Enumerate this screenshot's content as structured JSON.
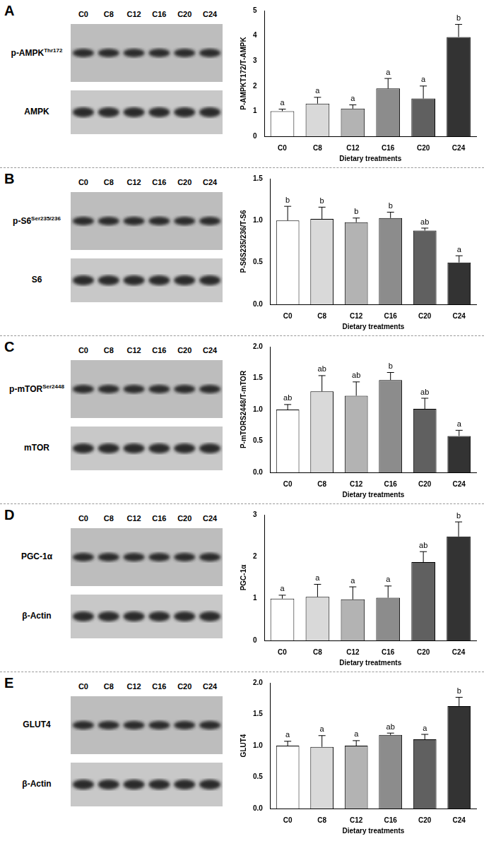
{
  "chart_data": [
    {
      "type": "bar",
      "title": "A",
      "categories": [
        "C0",
        "C8",
        "C12",
        "C16",
        "C20",
        "C24"
      ],
      "values": [
        1.0,
        1.3,
        1.1,
        1.9,
        1.5,
        3.95
      ],
      "errors": [
        0.08,
        0.25,
        0.15,
        0.4,
        0.5,
        0.5
      ],
      "significance": [
        "a",
        "a",
        "a",
        "a",
        "a",
        "b"
      ],
      "colors": [
        "#ffffff",
        "#d9d9d9",
        "#b3b3b3",
        "#8c8c8c",
        "#606060",
        "#333333"
      ],
      "x_label": "Dietary treatments",
      "y_label": "P-AMPKT172/T-AMPK",
      "ylim": [
        0,
        5
      ],
      "yticks": [
        0,
        1,
        2,
        3,
        4,
        5
      ],
      "grid": false
    },
    {
      "type": "bar",
      "title": "B",
      "categories": [
        "C0",
        "C8",
        "C12",
        "C16",
        "C20",
        "C24"
      ],
      "values": [
        1.0,
        1.02,
        0.98,
        1.03,
        0.88,
        0.5
      ],
      "errors": [
        0.17,
        0.14,
        0.05,
        0.07,
        0.03,
        0.08
      ],
      "significance": [
        "b",
        "b",
        "b",
        "b",
        "ab",
        "a"
      ],
      "colors": [
        "#ffffff",
        "#d9d9d9",
        "#b3b3b3",
        "#8c8c8c",
        "#606060",
        "#333333"
      ],
      "x_label": "Dietary treatments",
      "y_label": "P-S6S235/236/T-S6",
      "ylim": [
        0,
        1.5
      ],
      "yticks": [
        {
          "value": 0,
          "label": "0.0"
        },
        {
          "value": 0.5,
          "label": "0.5"
        },
        {
          "value": 1,
          "label": "1.0"
        },
        {
          "value": 1.5,
          "label": "1.5"
        }
      ],
      "grid": false
    },
    {
      "type": "bar",
      "title": "C",
      "categories": [
        "C0",
        "C8",
        "C12",
        "C16",
        "C20",
        "C24"
      ],
      "values": [
        1.0,
        1.29,
        1.22,
        1.47,
        1.01,
        0.58
      ],
      "errors": [
        0.08,
        0.25,
        0.22,
        0.12,
        0.17,
        0.09
      ],
      "significance": [
        "ab",
        "ab",
        "ab",
        "b",
        "ab",
        "a"
      ],
      "colors": [
        "#ffffff",
        "#d9d9d9",
        "#b3b3b3",
        "#8c8c8c",
        "#606060",
        "#333333"
      ],
      "x_label": "Dietary treatments",
      "y_label": "P-mTORS2448/T-mTOR",
      "ylim": [
        0,
        2
      ],
      "yticks": [
        {
          "value": 0,
          "label": "0.0"
        },
        {
          "value": 0.5,
          "label": "0.5"
        },
        {
          "value": 1,
          "label": "1.0"
        },
        {
          "value": 1.5,
          "label": "1.5"
        },
        {
          "value": 2,
          "label": "2.0"
        }
      ],
      "grid": false
    },
    {
      "type": "bar",
      "title": "D",
      "categories": [
        "C0",
        "C8",
        "C12",
        "C16",
        "C20",
        "C24"
      ],
      "values": [
        1.0,
        1.04,
        0.98,
        1.02,
        1.87,
        2.48
      ],
      "errors": [
        0.08,
        0.3,
        0.3,
        0.28,
        0.25,
        0.35
      ],
      "significance": [
        "a",
        "a",
        "a",
        "a",
        "ab",
        "b"
      ],
      "colors": [
        "#ffffff",
        "#d9d9d9",
        "#b3b3b3",
        "#8c8c8c",
        "#606060",
        "#333333"
      ],
      "x_label": "Dietary treatments",
      "y_label": "PGC-1α",
      "ylim": [
        0,
        3
      ],
      "yticks": [
        0,
        1,
        2,
        3
      ],
      "grid": false
    },
    {
      "type": "bar",
      "title": "E",
      "categories": [
        "C0",
        "C8",
        "C12",
        "C16",
        "C20",
        "C24"
      ],
      "values": [
        1.0,
        0.98,
        1.0,
        1.17,
        1.1,
        1.63
      ],
      "errors": [
        0.07,
        0.18,
        0.08,
        0.03,
        0.08,
        0.14
      ],
      "significance": [
        "a",
        "a",
        "a",
        "ab",
        "a",
        "b"
      ],
      "colors": [
        "#ffffff",
        "#d9d9d9",
        "#b3b3b3",
        "#8c8c8c",
        "#606060",
        "#333333"
      ],
      "x_label": "Dietary treatments",
      "y_label": "GLUT4",
      "ylim": [
        0,
        2
      ],
      "yticks": [
        {
          "value": 0,
          "label": "0.0"
        },
        {
          "value": 0.5,
          "label": "0.5"
        },
        {
          "value": 1,
          "label": "1.0"
        },
        {
          "value": 1.5,
          "label": "1.5"
        },
        {
          "value": 2,
          "label": "2.0"
        }
      ],
      "grid": false
    }
  ],
  "blots": [
    {
      "lanes": [
        "C0",
        "C8",
        "C12",
        "C16",
        "C20",
        "C24"
      ],
      "rows": [
        {
          "name": "p-AMPK",
          "sup": "Thr172"
        },
        {
          "name": "AMPK",
          "sup": ""
        }
      ]
    },
    {
      "lanes": [
        "C0",
        "C8",
        "C12",
        "C16",
        "C20",
        "C24"
      ],
      "rows": [
        {
          "name": "p-S6",
          "sup": "Ser235/236"
        },
        {
          "name": "S6",
          "sup": ""
        }
      ]
    },
    {
      "lanes": [
        "C0",
        "C8",
        "C12",
        "C16",
        "C20",
        "C24"
      ],
      "rows": [
        {
          "name": "p-mTOR",
          "sup": "Ser2448"
        },
        {
          "name": "mTOR",
          "sup": ""
        }
      ]
    },
    {
      "lanes": [
        "C0",
        "C8",
        "C12",
        "C16",
        "C20",
        "C24"
      ],
      "rows": [
        {
          "name": "PGC-1α",
          "sup": ""
        },
        {
          "name": "β-Actin",
          "sup": ""
        }
      ]
    },
    {
      "lanes": [
        "C0",
        "C8",
        "C12",
        "C16",
        "C20",
        "C24"
      ],
      "rows": [
        {
          "name": "GLUT4",
          "sup": ""
        },
        {
          "name": "β-Actin",
          "sup": ""
        }
      ]
    }
  ]
}
